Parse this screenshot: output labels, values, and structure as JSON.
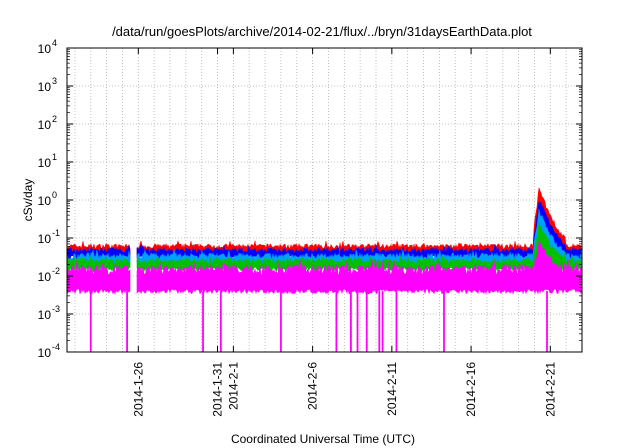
{
  "chart_data": {
    "type": "area",
    "title": "/data/run/goesPlots/archive/2014-02-21/flux/../bryn/31daysEarthData.plot",
    "xlabel": "Coordinated Universal Time (UTC)",
    "ylabel": "cSv/day",
    "yscale": "log",
    "ylim": [
      0.0001,
      10000
    ],
    "xlim": [
      "2014-01-21T12:00",
      "2014-02-23T00:00"
    ],
    "grid": true,
    "y_ticks": [
      {
        "base": "10",
        "exp": "-4",
        "value": 0.0001
      },
      {
        "base": "10",
        "exp": "-3",
        "value": 0.001
      },
      {
        "base": "10",
        "exp": "-2",
        "value": 0.01
      },
      {
        "base": "10",
        "exp": "-1",
        "value": 0.1
      },
      {
        "base": "10",
        "exp": "0",
        "value": 1
      },
      {
        "base": "10",
        "exp": "1",
        "value": 10
      },
      {
        "base": "10",
        "exp": "2",
        "value": 100
      },
      {
        "base": "10",
        "exp": "3",
        "value": 1000
      },
      {
        "base": "10",
        "exp": "4",
        "value": 10000
      }
    ],
    "x_ticks": [
      {
        "label": "2014-1-26",
        "date": "2014-01-26"
      },
      {
        "label": "2014-1-31",
        "date": "2014-01-31"
      },
      {
        "label": "2014-2-1",
        "date": "2014-02-01"
      },
      {
        "label": "2014-2-6",
        "date": "2014-02-06"
      },
      {
        "label": "2014-2-11",
        "date": "2014-02-11"
      },
      {
        "label": "2014-2-16",
        "date": "2014-02-16"
      },
      {
        "label": "2014-2-21",
        "date": "2014-02-21"
      }
    ],
    "series": [
      {
        "color": "#ff0000",
        "typical_max": 0.07,
        "typical_min": 0.04
      },
      {
        "color": "#0000ff",
        "typical_max": 0.055,
        "typical_min": 0.03
      },
      {
        "color": "#00a0ff",
        "typical_max": 0.04,
        "typical_min": 0.02
      },
      {
        "color": "#00c000",
        "typical_max": 0.03,
        "typical_min": 0.015
      },
      {
        "color": "#ff00ff",
        "typical_max": 0.02,
        "typical_min": 0.004
      }
    ],
    "data_gap": [
      "2014-01-25T12:00",
      "2014-01-25T22:00"
    ],
    "event": {
      "peak_date": "2014-02-20T07:00",
      "peak_value": 2.2
    },
    "dropouts": [
      "2014-01-23T00:00",
      "2014-01-25T07:00",
      "2014-01-30T02:00",
      "2014-01-31T05:00",
      "2014-02-04T00:00",
      "2014-02-07T12:00",
      "2014-02-08T10:00",
      "2014-02-08T20:00",
      "2014-02-09T10:00",
      "2014-02-10T05:00",
      "2014-02-10T10:00",
      "2014-02-11T07:00",
      "2014-02-14T07:00",
      "2014-02-20T19:00"
    ]
  }
}
